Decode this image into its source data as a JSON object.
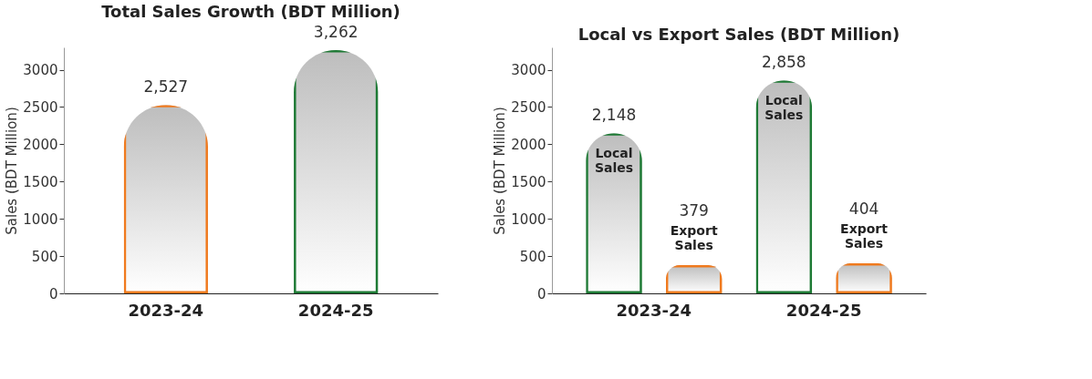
{
  "chart_data": [
    {
      "type": "bar",
      "title": "Total Sales Growth (BDT Million)",
      "ylabel": "Sales  (BDT Million)",
      "categories": [
        "2023-24",
        "2024-25"
      ],
      "values": [
        2527,
        3262
      ],
      "colors": [
        "#f07a1e",
        "#1e7a35"
      ],
      "value_labels": [
        "2,527",
        "3,262"
      ],
      "ylim": [
        0,
        3300
      ],
      "yticks": [
        0,
        500,
        1000,
        1500,
        2000,
        2500,
        3000
      ],
      "grid": false
    },
    {
      "type": "bar",
      "title": "Local vs Export Sales (BDT Million)",
      "ylabel": "Sales  (BDT Million)",
      "categories": [
        "2023-24",
        "2024-25"
      ],
      "series": [
        {
          "name": "Local Sales",
          "color": "#1e7a35",
          "values": [
            2148,
            2858
          ],
          "value_labels": [
            "2,148",
            "2,858"
          ]
        },
        {
          "name": "Export Sales",
          "color": "#f07a1e",
          "values": [
            379,
            404
          ],
          "value_labels": [
            "379",
            "404"
          ]
        }
      ],
      "ylim": [
        0,
        3300
      ],
      "yticks": [
        0,
        500,
        1000,
        1500,
        2000,
        2500,
        3000
      ],
      "grid": false
    }
  ]
}
